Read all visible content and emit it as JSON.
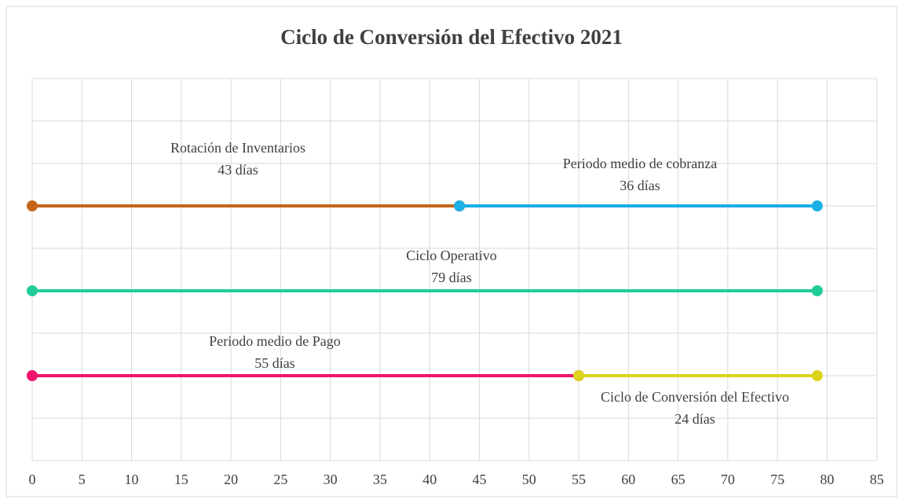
{
  "chart_data": {
    "type": "line",
    "title": "Ciclo de Conversión del Efectivo  2021",
    "xlim": [
      0,
      85.5
    ],
    "xticks": [
      0,
      5,
      10,
      15,
      20,
      25,
      30,
      35,
      40,
      45,
      50,
      55,
      60,
      65,
      70,
      75,
      80,
      85
    ],
    "ylim": [
      0,
      9
    ],
    "yticks": [
      0,
      1,
      2,
      3,
      4,
      5,
      6,
      7,
      8,
      9
    ],
    "grid": true,
    "series": [
      {
        "name": "Rotación de Inventarios",
        "color": "#c5651b",
        "x": [
          0,
          43
        ],
        "values": [
          6,
          6
        ],
        "value_label": "43 días"
      },
      {
        "name": "Periodo medio de cobranza",
        "color": "#1aafe6",
        "x": [
          43,
          79
        ],
        "values": [
          6,
          6
        ],
        "value_label": "36 días"
      },
      {
        "name": "Ciclo Operativo",
        "color": "#22cc9a",
        "x": [
          0,
          79
        ],
        "values": [
          4,
          4
        ],
        "value_label": "79 días"
      },
      {
        "name": "Periodo medio de Pago",
        "color": "#f0146c",
        "x": [
          0,
          55
        ],
        "values": [
          2,
          2
        ],
        "value_label": "55 días"
      },
      {
        "name": "Ciclo de Conversión del Efectivo",
        "color": "#dcd41a",
        "x": [
          55,
          79
        ],
        "values": [
          2,
          2
        ],
        "value_label": "24 días"
      }
    ]
  }
}
